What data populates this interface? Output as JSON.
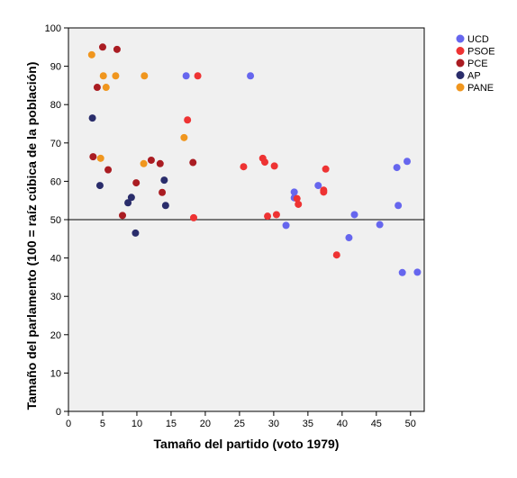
{
  "chart_data": {
    "type": "scatter",
    "xlabel": "Tamaño del partido (voto 1979)",
    "ylabel": "Tamaño del parlamento (100 = raíz cúbica de la población)",
    "xlim": [
      0,
      52
    ],
    "ylim": [
      0,
      100
    ],
    "x_ticks": [
      0,
      5,
      10,
      15,
      20,
      25,
      30,
      35,
      40,
      45,
      50
    ],
    "y_ticks": [
      0,
      10,
      20,
      30,
      40,
      50,
      60,
      70,
      80,
      90,
      100
    ],
    "reference_line_y": 50,
    "plot_background": "#f0f0f0",
    "legend_position": "right",
    "series": [
      {
        "name": "UCD",
        "color": "#6666ee",
        "points": [
          [
            17.2,
            87.5
          ],
          [
            26.6,
            87.5
          ],
          [
            31.8,
            48.5
          ],
          [
            33.0,
            57.2
          ],
          [
            33.0,
            55.7
          ],
          [
            36.5,
            58.9
          ],
          [
            41.8,
            51.3
          ],
          [
            41.0,
            45.3
          ],
          [
            45.5,
            48.7
          ],
          [
            48.0,
            63.6
          ],
          [
            48.2,
            53.7
          ],
          [
            49.5,
            65.2
          ],
          [
            48.8,
            36.2
          ],
          [
            51.0,
            36.3
          ]
        ]
      },
      {
        "name": "PSOE",
        "color": "#ee3333",
        "points": [
          [
            18.9,
            87.5
          ],
          [
            17.4,
            76.0
          ],
          [
            25.6,
            63.8
          ],
          [
            28.4,
            66.0
          ],
          [
            28.7,
            65.0
          ],
          [
            30.1,
            64.0
          ],
          [
            29.1,
            50.9
          ],
          [
            30.4,
            51.3
          ],
          [
            33.4,
            55.5
          ],
          [
            33.6,
            54.0
          ],
          [
            37.3,
            57.7
          ],
          [
            37.3,
            57.2
          ],
          [
            37.6,
            63.2
          ],
          [
            39.2,
            40.8
          ],
          [
            18.3,
            50.5
          ]
        ]
      },
      {
        "name": "PCE",
        "color": "#aa1c22",
        "points": [
          [
            5.0,
            95.0
          ],
          [
            7.1,
            94.4
          ],
          [
            4.2,
            84.5
          ],
          [
            3.6,
            66.4
          ],
          [
            5.8,
            63.0
          ],
          [
            9.9,
            59.6
          ],
          [
            12.1,
            65.5
          ],
          [
            13.4,
            64.6
          ],
          [
            18.2,
            64.9
          ],
          [
            13.7,
            57.1
          ],
          [
            7.9,
            51.1
          ]
        ]
      },
      {
        "name": "AP",
        "color": "#2a2d6b",
        "points": [
          [
            3.5,
            76.5
          ],
          [
            4.6,
            58.9
          ],
          [
            9.2,
            55.8
          ],
          [
            8.7,
            54.4
          ],
          [
            14.0,
            60.3
          ],
          [
            14.2,
            53.7
          ],
          [
            9.8,
            46.5
          ]
        ]
      },
      {
        "name": "PANE",
        "color": "#f0961e",
        "points": [
          [
            3.4,
            93.0
          ],
          [
            5.1,
            87.5
          ],
          [
            6.9,
            87.5
          ],
          [
            11.1,
            87.5
          ],
          [
            5.5,
            84.5
          ],
          [
            4.7,
            66.0
          ],
          [
            11.0,
            64.6
          ],
          [
            16.9,
            71.4
          ]
        ]
      }
    ]
  }
}
